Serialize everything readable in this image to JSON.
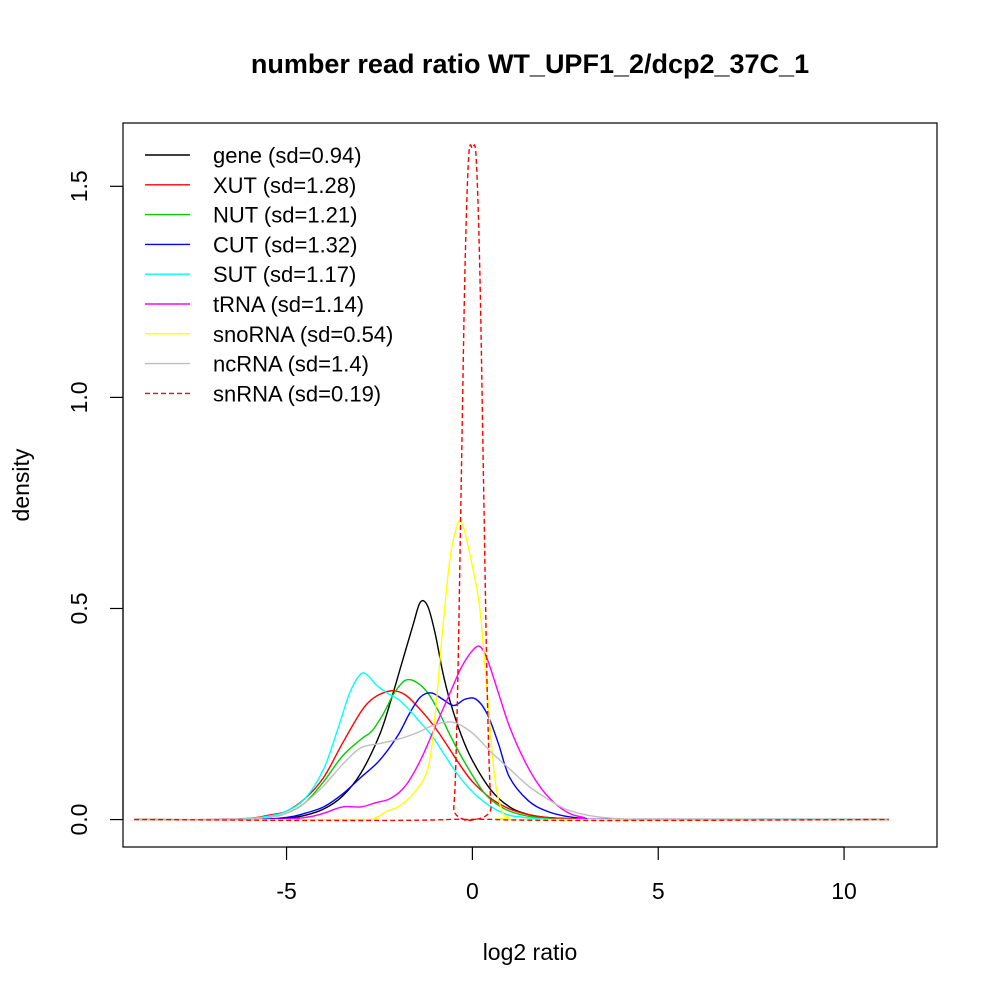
{
  "chart_data": {
    "type": "line",
    "title": "number read ratio WT_UPF1_2/dcp2_37C_1",
    "xlabel": "log2 ratio",
    "ylabel": "density",
    "xlim": [
      -9.4,
      12.5
    ],
    "ylim": [
      -0.065,
      1.65
    ],
    "xticks": [
      -5,
      0,
      5,
      10
    ],
    "xtick_labels": [
      "-5",
      "0",
      "5",
      "10"
    ],
    "yticks": [
      0.0,
      0.5,
      1.0,
      1.5
    ],
    "ytick_labels": [
      "0.0",
      "0.5",
      "1.0",
      "1.5"
    ],
    "grid": false,
    "legend_position": "top-left",
    "series": [
      {
        "name": "gene (sd=0.94)",
        "color": "#000000",
        "dash": "solid",
        "x": [
          -9.1,
          -6.0,
          -5.0,
          -4.5,
          -4.0,
          -3.5,
          -3.0,
          -2.5,
          -2.2,
          -1.9,
          -1.6,
          -1.4,
          -1.2,
          -1.0,
          -0.8,
          -0.6,
          -0.3,
          0.0,
          0.5,
          1.0,
          1.5,
          2.0,
          3.0,
          4.0,
          11.2
        ],
        "y": [
          0.0,
          0.0,
          0.003,
          0.01,
          0.025,
          0.055,
          0.11,
          0.2,
          0.28,
          0.37,
          0.46,
          0.515,
          0.505,
          0.44,
          0.35,
          0.28,
          0.2,
          0.14,
          0.07,
          0.03,
          0.012,
          0.005,
          0.001,
          0.0,
          0.0
        ]
      },
      {
        "name": "XUT (sd=1.28)",
        "color": "#ff0000",
        "dash": "solid",
        "x": [
          -9.1,
          -7.0,
          -6.0,
          -5.5,
          -5.0,
          -4.5,
          -4.0,
          -3.5,
          -3.0,
          -2.7,
          -2.4,
          -2.1,
          -1.8,
          -1.5,
          -1.2,
          -0.9,
          -0.6,
          -0.3,
          0.0,
          0.5,
          1.0,
          1.5,
          2.0,
          3.0,
          4.0,
          11.2
        ],
        "y": [
          0.0,
          0.0,
          0.003,
          0.01,
          0.02,
          0.05,
          0.1,
          0.18,
          0.255,
          0.285,
          0.3,
          0.305,
          0.295,
          0.27,
          0.24,
          0.205,
          0.165,
          0.125,
          0.09,
          0.05,
          0.025,
          0.012,
          0.005,
          0.001,
          0.0,
          0.0
        ]
      },
      {
        "name": "NUT (sd=1.21)",
        "color": "#00cd00",
        "dash": "solid",
        "x": [
          -9.1,
          -6.5,
          -5.5,
          -5.0,
          -4.5,
          -4.0,
          -3.5,
          -3.0,
          -2.7,
          -2.4,
          -2.1,
          -1.8,
          -1.5,
          -1.2,
          -0.9,
          -0.6,
          -0.3,
          0.0,
          0.3,
          0.6,
          1.0,
          1.5,
          2.0,
          3.0,
          11.2
        ],
        "y": [
          0.0,
          0.0,
          0.005,
          0.015,
          0.04,
          0.09,
          0.15,
          0.19,
          0.21,
          0.25,
          0.3,
          0.33,
          0.325,
          0.3,
          0.255,
          0.2,
          0.15,
          0.105,
          0.065,
          0.04,
          0.02,
          0.008,
          0.003,
          0.0,
          0.0
        ]
      },
      {
        "name": "CUT (sd=1.32)",
        "color": "#0000ff",
        "dash": "solid",
        "x": [
          -9.1,
          -6.0,
          -5.0,
          -4.5,
          -4.0,
          -3.5,
          -3.0,
          -2.5,
          -2.0,
          -1.7,
          -1.4,
          -1.1,
          -0.8,
          -0.5,
          -0.2,
          0.1,
          0.4,
          0.7,
          1.0,
          1.5,
          2.0,
          2.5,
          3.0,
          4.0,
          11.2
        ],
        "y": [
          0.0,
          0.0,
          0.005,
          0.015,
          0.03,
          0.06,
          0.1,
          0.14,
          0.2,
          0.25,
          0.29,
          0.3,
          0.285,
          0.27,
          0.285,
          0.285,
          0.25,
          0.18,
          0.1,
          0.045,
          0.02,
          0.008,
          0.003,
          0.0,
          0.0
        ]
      },
      {
        "name": "SUT (sd=1.17)",
        "color": "#00ffff",
        "dash": "solid",
        "x": [
          -9.1,
          -6.5,
          -5.5,
          -5.0,
          -4.5,
          -4.0,
          -3.6,
          -3.3,
          -3.0,
          -2.8,
          -2.6,
          -2.3,
          -2.0,
          -1.7,
          -1.4,
          -1.1,
          -0.8,
          -0.5,
          -0.2,
          0.2,
          0.6,
          1.0,
          1.5,
          2.0,
          3.0,
          11.2
        ],
        "y": [
          0.0,
          0.0,
          0.008,
          0.02,
          0.05,
          0.12,
          0.22,
          0.3,
          0.345,
          0.34,
          0.32,
          0.3,
          0.285,
          0.26,
          0.23,
          0.2,
          0.16,
          0.12,
          0.085,
          0.05,
          0.025,
          0.01,
          0.004,
          0.001,
          0.0,
          0.0
        ]
      },
      {
        "name": "tRNA (sd=1.14)",
        "color": "#ff00ff",
        "dash": "solid",
        "x": [
          -9.1,
          -5.5,
          -4.5,
          -4.0,
          -3.5,
          -3.0,
          -2.6,
          -2.2,
          -1.8,
          -1.4,
          -1.0,
          -0.6,
          -0.3,
          0.0,
          0.2,
          0.4,
          0.7,
          1.0,
          1.4,
          1.8,
          2.2,
          2.6,
          3.0,
          3.5,
          11.2
        ],
        "y": [
          0.0,
          0.0,
          0.005,
          0.015,
          0.03,
          0.03,
          0.04,
          0.05,
          0.08,
          0.14,
          0.22,
          0.3,
          0.36,
          0.4,
          0.41,
          0.38,
          0.3,
          0.22,
          0.14,
          0.08,
          0.04,
          0.015,
          0.005,
          0.0,
          0.0
        ]
      },
      {
        "name": "snoRNA (sd=0.54)",
        "color": "#ffff00",
        "dash": "solid",
        "x": [
          -9.1,
          -3.2,
          -2.6,
          -2.3,
          -2.0,
          -1.6,
          -1.2,
          -1.0,
          -0.8,
          -0.6,
          -0.4,
          -0.3,
          -0.2,
          0.0,
          0.2,
          0.4,
          0.6,
          0.8,
          1.0,
          1.5,
          11.2
        ],
        "y": [
          0.0,
          0.0,
          0.005,
          0.02,
          0.03,
          0.06,
          0.12,
          0.25,
          0.45,
          0.62,
          0.7,
          0.705,
          0.68,
          0.6,
          0.5,
          0.3,
          0.1,
          0.02,
          0.005,
          0.0,
          0.0
        ]
      },
      {
        "name": "ncRNA (sd=1.4)",
        "color": "#bebebe",
        "dash": "solid",
        "x": [
          -9.1,
          -6.5,
          -5.5,
          -5.0,
          -4.5,
          -4.0,
          -3.5,
          -3.0,
          -2.5,
          -2.0,
          -1.5,
          -1.0,
          -0.5,
          0.0,
          0.5,
          1.0,
          1.5,
          2.0,
          2.5,
          3.0,
          3.5,
          4.0,
          5.0,
          11.2
        ],
        "y": [
          0.0,
          0.0,
          0.005,
          0.015,
          0.04,
          0.08,
          0.13,
          0.17,
          0.18,
          0.19,
          0.205,
          0.225,
          0.23,
          0.205,
          0.16,
          0.12,
          0.08,
          0.05,
          0.025,
          0.012,
          0.005,
          0.002,
          0.0,
          0.0
        ]
      },
      {
        "name": "snRNA (sd=0.19)",
        "color": "#ff0000",
        "dash": "dashed",
        "x": [
          -9.1,
          -0.7,
          -0.5,
          -0.4,
          -0.3,
          -0.2,
          -0.1,
          0.0,
          0.1,
          0.2,
          0.3,
          0.4,
          0.5,
          0.6,
          11.2
        ],
        "y": [
          0.0,
          0.0,
          0.03,
          0.3,
          0.8,
          1.3,
          1.57,
          1.59,
          1.57,
          1.3,
          0.8,
          0.3,
          0.03,
          0.0,
          0.0
        ]
      }
    ]
  }
}
